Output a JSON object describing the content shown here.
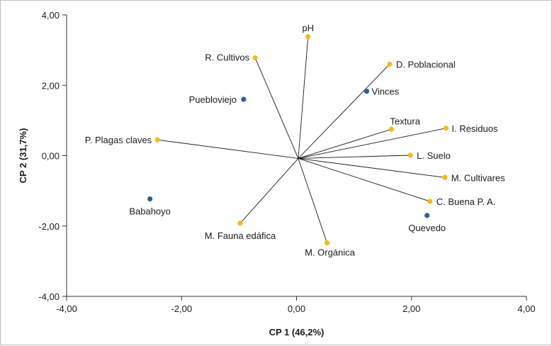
{
  "chart_data": {
    "type": "scatter",
    "title": "",
    "xlabel": "CP 1 (46,2%)",
    "ylabel": "CP 2 (31,7%)",
    "xlim": [
      -4,
      4
    ],
    "ylim": [
      -4,
      4
    ],
    "x_ticks": [
      "-4,00",
      "-2,00",
      "0,00",
      "2,00",
      "4,00"
    ],
    "y_ticks": [
      "4,00",
      "2,00",
      "0,00",
      "-2,00",
      "-4,00"
    ],
    "grid": false,
    "colors": {
      "variables": "#f5b820",
      "sites": "#2f5d94",
      "vector": "#1a1a1a"
    },
    "series": [
      {
        "kind": "variables",
        "points": [
          {
            "label": "pH",
            "x": 0.2,
            "y": 3.38
          },
          {
            "label": "R. Cultivos",
            "x": -0.72,
            "y": 2.78
          },
          {
            "label": "D. Poblacional",
            "x": 1.62,
            "y": 2.6
          },
          {
            "label": "Textura",
            "x": 1.65,
            "y": 0.75
          },
          {
            "label": "I. Residuos",
            "x": 2.6,
            "y": 0.78
          },
          {
            "label": "P. Plagas claves",
            "x": -2.42,
            "y": 0.45
          },
          {
            "label": "L. Suelo",
            "x": 1.98,
            "y": 0.01
          },
          {
            "label": "M. Cultivares",
            "x": 2.58,
            "y": -0.62
          },
          {
            "label": "C. Buena P. A.",
            "x": 2.32,
            "y": -1.3
          },
          {
            "label": "M. Fauna edáfica",
            "x": -0.98,
            "y": -1.92
          },
          {
            "label": "M. Orgánica",
            "x": 0.53,
            "y": -2.48
          }
        ]
      },
      {
        "kind": "sites",
        "points": [
          {
            "label": "Puebloviejo",
            "x": -0.92,
            "y": 1.6
          },
          {
            "label": "Vinces",
            "x": 1.22,
            "y": 1.83
          },
          {
            "label": "Babahoyo",
            "x": -2.55,
            "y": -1.23
          },
          {
            "label": "Quevedo",
            "x": 2.27,
            "y": -1.7
          }
        ]
      }
    ]
  }
}
